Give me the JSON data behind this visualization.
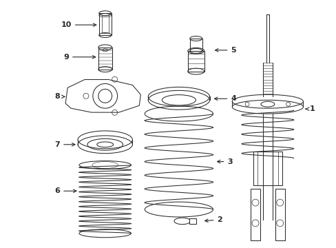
{
  "background_color": "#ffffff",
  "line_color": "#2a2a2a",
  "fig_width": 4.89,
  "fig_height": 3.6,
  "dpi": 100,
  "lw": 0.75
}
